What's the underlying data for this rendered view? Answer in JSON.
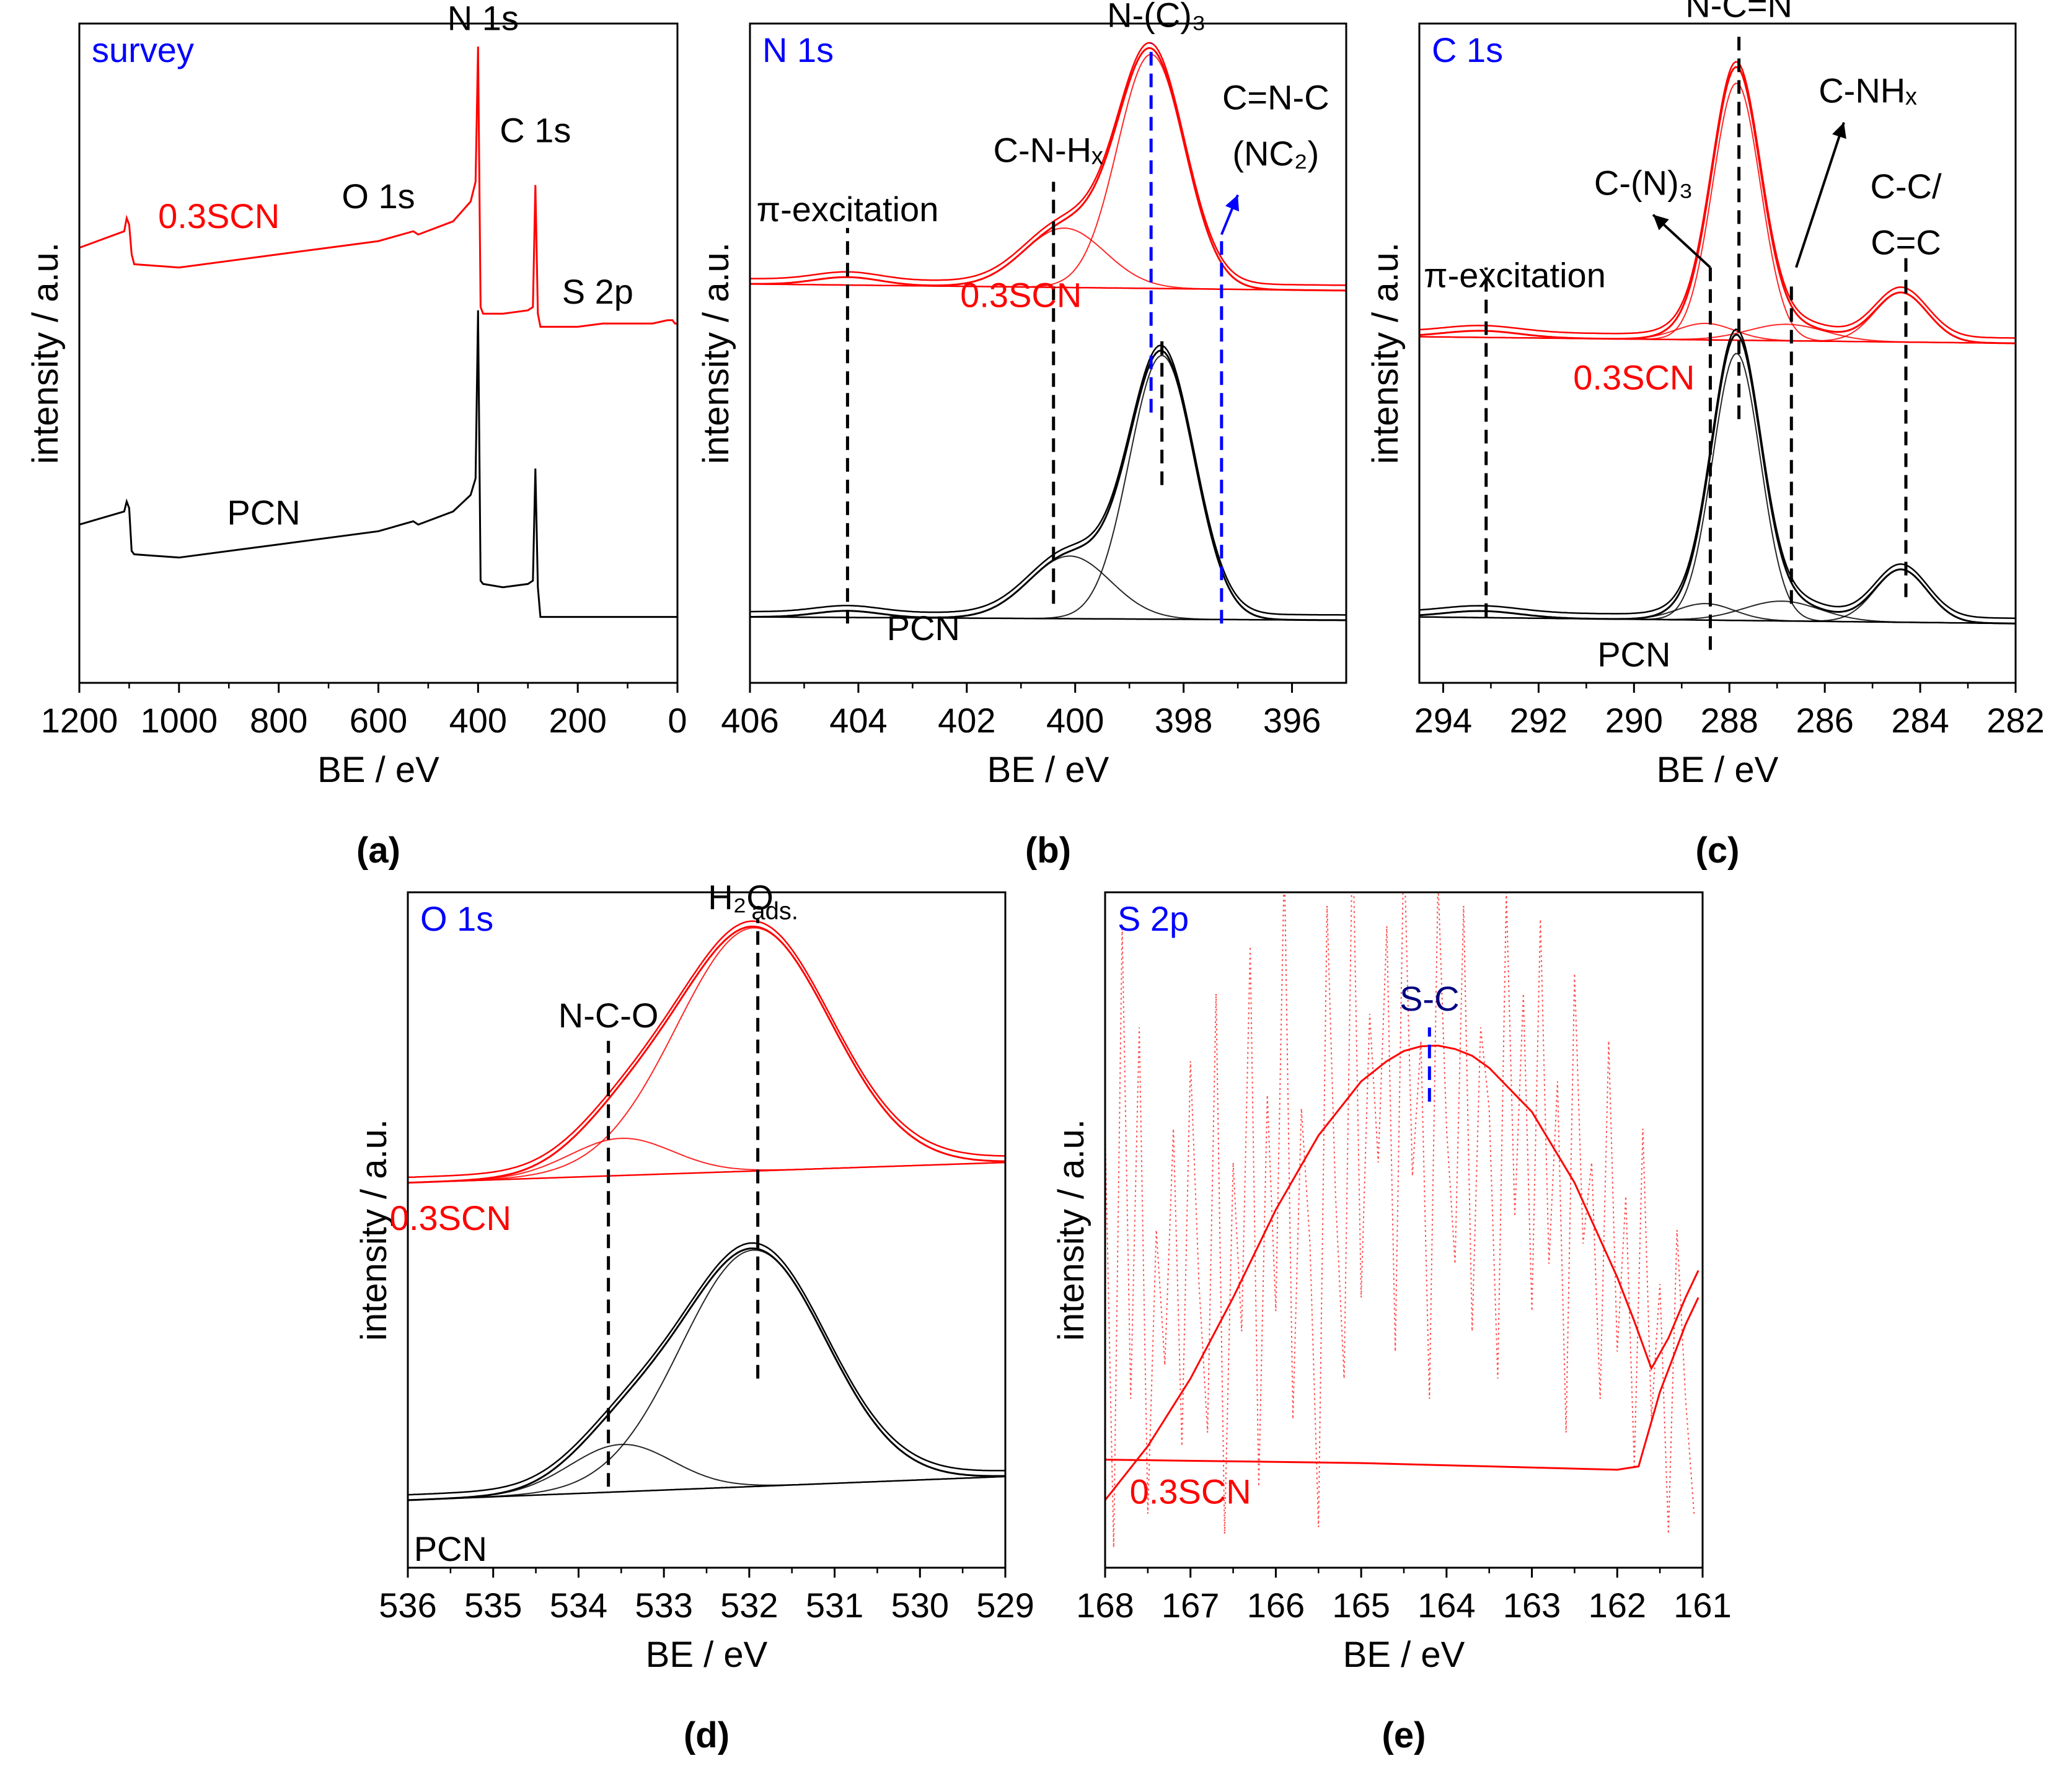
{
  "colors": {
    "red": "#ff0000",
    "black": "#000000",
    "blue": "#0000ff",
    "axis": "#000000"
  },
  "chart_data": [
    {
      "id": "a",
      "type": "line",
      "label": "(a)",
      "panel_title": "survey",
      "xlabel": "BE / eV",
      "ylabel": "intensity / a.u.",
      "xlim": [
        1200,
        0
      ],
      "ylim": [
        0,
        10
      ],
      "xticks": [
        "1200",
        "1000",
        "800",
        "600",
        "400",
        "200",
        "0"
      ],
      "xtick_values": [
        1200,
        1000,
        800,
        600,
        400,
        200,
        0
      ],
      "series": [
        {
          "name": "0.3SCN",
          "color": "red",
          "x": [
            1200,
            1110,
            1105,
            1100,
            1095,
            1090,
            1000,
            800,
            600,
            530,
            520,
            450,
            415,
            405,
            400,
            395,
            390,
            350,
            300,
            290,
            285,
            280,
            275,
            250,
            200,
            150,
            100,
            50,
            20,
            10,
            5,
            0
          ],
          "y": [
            6.6,
            6.85,
            7.05,
            6.95,
            6.5,
            6.35,
            6.3,
            6.5,
            6.7,
            6.85,
            6.8,
            7.0,
            7.3,
            7.6,
            9.65,
            5.7,
            5.6,
            5.6,
            5.65,
            5.7,
            7.55,
            5.6,
            5.4,
            5.4,
            5.4,
            5.45,
            5.45,
            5.45,
            5.5,
            5.5,
            5.45,
            5.45
          ]
        },
        {
          "name": "PCN",
          "color": "black",
          "x": [
            1200,
            1110,
            1105,
            1100,
            1095,
            1090,
            1000,
            800,
            600,
            530,
            520,
            450,
            415,
            405,
            400,
            395,
            390,
            350,
            300,
            290,
            285,
            280,
            275,
            250,
            200,
            150,
            100,
            50,
            20,
            10,
            5,
            0
          ],
          "y": [
            2.4,
            2.6,
            2.75,
            2.65,
            2.0,
            1.95,
            1.9,
            2.1,
            2.3,
            2.45,
            2.4,
            2.6,
            2.85,
            3.1,
            5.65,
            1.55,
            1.5,
            1.45,
            1.5,
            1.55,
            3.25,
            1.45,
            1.0,
            1.0,
            1.0,
            1.0,
            1.0,
            1.0,
            1.0,
            1.0,
            1.0,
            1.0
          ]
        }
      ],
      "annotations": [
        {
          "text": "N 1s",
          "x": 390,
          "y": 9.9,
          "color": "black"
        },
        {
          "text": "C 1s",
          "x": 285,
          "y": 8.2,
          "color": "black"
        },
        {
          "text": "O 1s",
          "x": 600,
          "y": 7.2,
          "color": "black"
        },
        {
          "text": "S 2p",
          "x": 160,
          "y": 5.75,
          "color": "black"
        },
        {
          "text": "0.3SCN",
          "x": 920,
          "y": 6.9,
          "color": "red"
        },
        {
          "text": "PCN",
          "x": 830,
          "y": 2.4,
          "color": "black"
        }
      ]
    },
    {
      "id": "b",
      "type": "line",
      "label": "(b)",
      "panel_title": "N 1s",
      "xlabel": "BE / eV",
      "ylabel": "intensity / a.u.",
      "xlim": [
        406,
        395
      ],
      "ylim": [
        0,
        10
      ],
      "xticks": [
        "406",
        "404",
        "402",
        "400",
        "398",
        "396"
      ],
      "xtick_values": [
        406,
        404,
        402,
        400,
        398,
        396
      ],
      "series": [
        {
          "name": "0.3SCN",
          "color": "red",
          "baseline": 6.05,
          "baseline_end": 5.95,
          "peaks": [
            {
              "center": 398.6,
              "height": 3.55,
              "sigma": 0.62
            },
            {
              "center": 400.2,
              "height": 0.9,
              "sigma": 0.75
            },
            {
              "center": 404.2,
              "height": 0.12,
              "sigma": 0.6
            }
          ]
        },
        {
          "name": "PCN",
          "color": "black",
          "baseline": 1.0,
          "baseline_end": 0.95,
          "peaks": [
            {
              "center": 398.4,
              "height": 4.0,
              "sigma": 0.6
            },
            {
              "center": 400.1,
              "height": 0.95,
              "sigma": 0.75
            },
            {
              "center": 404.2,
              "height": 0.1,
              "sigma": 0.6
            }
          ]
        }
      ],
      "markers": [
        {
          "x": 404.2,
          "y1": 0.9,
          "y2": 6.9,
          "color": "black"
        },
        {
          "x": 400.4,
          "y1": 1.2,
          "y2": 7.6,
          "color": "black"
        },
        {
          "x": 398.6,
          "y1": 4.1,
          "y2": 9.7,
          "color": "blue"
        },
        {
          "x": 398.4,
          "y1": 3.0,
          "y2": 5.3,
          "color": "black"
        },
        {
          "x": 397.3,
          "y1": 0.9,
          "y2": 6.8,
          "color": "blue"
        }
      ],
      "annotations": [
        {
          "text": "N-(C)₃",
          "x": 398.5,
          "y": 9.95,
          "color": "black"
        },
        {
          "text": "C=N-C",
          "x": 396.3,
          "y": 8.7,
          "color": "black"
        },
        {
          "text": "(NC₂)",
          "x": 396.3,
          "y": 7.85,
          "color": "black"
        },
        {
          "text": "C-N-Hₓ",
          "x": 400.5,
          "y": 7.9,
          "color": "black"
        },
        {
          "text": "π-excitation",
          "x": 404.2,
          "y": 7.0,
          "color": "black"
        },
        {
          "text": "0.3SCN",
          "x": 401.0,
          "y": 5.7,
          "color": "red"
        },
        {
          "text": "PCN",
          "x": 402.8,
          "y": 0.65,
          "color": "black"
        }
      ]
    },
    {
      "id": "c",
      "type": "line",
      "label": "(c)",
      "panel_title": "C 1s",
      "xlabel": "BE / eV",
      "ylabel": "intensity / a.u.",
      "xlim": [
        294.5,
        282
      ],
      "ylim": [
        0,
        10
      ],
      "xticks": [
        "294",
        "292",
        "290",
        "288",
        "286",
        "284",
        "282"
      ],
      "xtick_values": [
        294,
        292,
        290,
        288,
        286,
        284,
        282
      ],
      "series": [
        {
          "name": "0.3SCN",
          "color": "red",
          "baseline": 5.25,
          "baseline_end": 5.15,
          "peaks": [
            {
              "center": 287.85,
              "height": 3.9,
              "sigma": 0.5
            },
            {
              "center": 288.5,
              "height": 0.25,
              "sigma": 0.6
            },
            {
              "center": 286.8,
              "height": 0.25,
              "sigma": 0.8
            },
            {
              "center": 284.4,
              "height": 0.75,
              "sigma": 0.55
            },
            {
              "center": 293.2,
              "height": 0.1,
              "sigma": 0.8
            }
          ]
        },
        {
          "name": "PCN",
          "color": "black",
          "baseline": 1.0,
          "baseline_end": 0.9,
          "peaks": [
            {
              "center": 287.85,
              "height": 4.05,
              "sigma": 0.5
            },
            {
              "center": 288.5,
              "height": 0.25,
              "sigma": 0.6
            },
            {
              "center": 286.9,
              "height": 0.3,
              "sigma": 0.8
            },
            {
              "center": 284.4,
              "height": 0.8,
              "sigma": 0.55
            },
            {
              "center": 293.2,
              "height": 0.1,
              "sigma": 0.8
            }
          ]
        }
      ],
      "markers": [
        {
          "x": 293.1,
          "y1": 1.0,
          "y2": 6.3,
          "color": "black"
        },
        {
          "x": 288.4,
          "y1": 0.5,
          "y2": 6.3,
          "color": "black"
        },
        {
          "x": 287.8,
          "y1": 4.0,
          "y2": 9.9,
          "color": "black"
        },
        {
          "x": 286.7,
          "y1": 1.2,
          "y2": 6.1,
          "color": "black"
        },
        {
          "x": 284.3,
          "y1": 1.3,
          "y2": 6.5,
          "color": "black"
        }
      ],
      "annotations": [
        {
          "text": "N-C=N",
          "x": 287.8,
          "y": 10.1,
          "color": "black"
        },
        {
          "text": "C-NHₓ",
          "x": 285.1,
          "y": 8.8,
          "color": "black"
        },
        {
          "text": "C-(N)₃",
          "x": 289.8,
          "y": 7.4,
          "color": "black"
        },
        {
          "text": "C-C/",
          "x": 284.3,
          "y": 7.35,
          "color": "black"
        },
        {
          "text": "C=C",
          "x": 284.3,
          "y": 6.5,
          "color": "black"
        },
        {
          "text": "π-excitation",
          "x": 292.5,
          "y": 6.0,
          "color": "black"
        },
        {
          "text": "0.3SCN",
          "x": 290.0,
          "y": 4.45,
          "color": "red"
        },
        {
          "text": "PCN",
          "x": 290.0,
          "y": 0.25,
          "color": "black"
        }
      ]
    },
    {
      "id": "d",
      "type": "line",
      "label": "(d)",
      "panel_title": "O 1s",
      "xlabel": "BE / eV",
      "ylabel": "intensity / a.u.",
      "xlim": [
        536,
        529
      ],
      "ylim": [
        0,
        10
      ],
      "xticks": [
        "536",
        "535",
        "534",
        "533",
        "532",
        "531",
        "530",
        "529"
      ],
      "xtick_values": [
        536,
        535,
        534,
        533,
        532,
        531,
        530,
        529
      ],
      "series": [
        {
          "name": "0.3SCN",
          "color": "red",
          "baseline": 5.7,
          "baseline_end": 6.0,
          "peaks": [
            {
              "center": 531.95,
              "height": 3.6,
              "sigma": 0.9
            },
            {
              "center": 533.5,
              "height": 0.55,
              "sigma": 0.6
            }
          ]
        },
        {
          "name": "PCN",
          "color": "black",
          "baseline": 1.0,
          "baseline_end": 1.35,
          "peaks": [
            {
              "center": 531.95,
              "height": 3.5,
              "sigma": 0.85
            },
            {
              "center": 533.5,
              "height": 0.7,
              "sigma": 0.6
            }
          ]
        }
      ],
      "markers": [
        {
          "x": 533.65,
          "y1": 1.2,
          "y2": 7.8,
          "color": "black"
        },
        {
          "x": 531.9,
          "y1": 2.8,
          "y2": 9.6,
          "color": "black"
        }
      ],
      "annotations": [
        {
          "text": "H₂O",
          "x": 532.1,
          "y": 9.75,
          "color": "black"
        },
        {
          "text": "ads.",
          "x": 531.7,
          "y": 9.6,
          "color": "black"
        },
        {
          "text": "N-C-O",
          "x": 533.65,
          "y": 8.0,
          "color": "black"
        },
        {
          "text": "0.3SCN",
          "x": 535.5,
          "y": 5.0,
          "color": "red"
        },
        {
          "text": "PCN",
          "x": 535.5,
          "y": 0.1,
          "color": "black"
        }
      ]
    },
    {
      "id": "e",
      "type": "line",
      "label": "(e)",
      "panel_title": "S 2p",
      "xlabel": "BE / eV",
      "ylabel": "intensity / a.u.",
      "xlim": [
        168,
        161
      ],
      "ylim": [
        0,
        10
      ],
      "xticks": [
        "168",
        "167",
        "166",
        "165",
        "164",
        "163",
        "162",
        "161"
      ],
      "xtick_values": [
        168,
        167,
        166,
        165,
        164,
        163,
        162,
        161
      ],
      "series": [
        {
          "name": "0.3SCN envelope",
          "color": "red",
          "style": "solid",
          "x": [
            168,
            167.5,
            167,
            166.5,
            166,
            165.5,
            165,
            164.7,
            164.5,
            164.3,
            164.1,
            163.9,
            163.7,
            163.5,
            163,
            162.5,
            162,
            161.8,
            161.6,
            161.4,
            161.2,
            161.05
          ],
          "y": [
            1.0,
            1.8,
            2.8,
            4.0,
            5.3,
            6.4,
            7.2,
            7.5,
            7.65,
            7.72,
            7.73,
            7.68,
            7.58,
            7.4,
            6.75,
            5.7,
            4.3,
            3.65,
            2.95,
            3.4,
            4.0,
            4.4
          ]
        },
        {
          "name": "0.3SCN background",
          "color": "red",
          "style": "solid",
          "x": [
            168,
            165,
            162,
            161.75,
            161.5,
            161.2,
            161.05
          ],
          "y": [
            1.6,
            1.55,
            1.45,
            1.5,
            2.6,
            3.6,
            4.0
          ]
        },
        {
          "name": "0.3SCN raw",
          "color": "red",
          "style": "dotted",
          "x": [
            168,
            167.9,
            167.8,
            167.7,
            167.6,
            167.5,
            167.4,
            167.3,
            167.2,
            167.1,
            167.0,
            166.9,
            166.8,
            166.7,
            166.6,
            166.5,
            166.4,
            166.3,
            166.2,
            166.1,
            166.0,
            165.9,
            165.8,
            165.7,
            165.6,
            165.5,
            165.4,
            165.3,
            165.2,
            165.1,
            165.0,
            164.9,
            164.8,
            164.7,
            164.6,
            164.5,
            164.4,
            164.3,
            164.2,
            164.1,
            164.0,
            163.9,
            163.8,
            163.7,
            163.6,
            163.5,
            163.4,
            163.3,
            163.2,
            163.1,
            163.0,
            162.9,
            162.8,
            162.7,
            162.6,
            162.5,
            162.4,
            162.3,
            162.2,
            162.1,
            162.0,
            161.9,
            161.8,
            161.7,
            161.6,
            161.5,
            161.4,
            161.3,
            161.2,
            161.1
          ],
          "y": [
            6.5,
            0.3,
            9.5,
            2.5,
            8.0,
            0.8,
            5.0,
            3.0,
            6.5,
            1.8,
            7.5,
            4.2,
            2.0,
            8.5,
            0.5,
            6.0,
            3.5,
            9.2,
            1.2,
            7.0,
            3.8,
            10.5,
            2.2,
            6.8,
            4.8,
            0.6,
            9.8,
            5.5,
            2.8,
            11.0,
            4.0,
            8.2,
            6.0,
            9.5,
            3.2,
            10.8,
            5.8,
            7.8,
            2.5,
            10.2,
            6.5,
            4.5,
            9.8,
            3.5,
            8.0,
            6.8,
            2.8,
            10.0,
            5.2,
            8.5,
            3.8,
            9.6,
            4.5,
            7.2,
            2.0,
            8.8,
            4.8,
            6.0,
            2.5,
            7.8,
            3.2,
            5.5,
            1.5,
            6.5,
            2.2,
            4.2,
            0.5,
            5.0,
            2.5,
            0.8
          ]
        }
      ],
      "markers": [
        {
          "x": 164.2,
          "y1": 6.9,
          "y2": 8.0,
          "color": "blue"
        }
      ],
      "annotations": [
        {
          "text": "S-C",
          "x": 164.2,
          "y": 8.25,
          "color": "navy"
        },
        {
          "text": "0.3SCN",
          "x": 167.0,
          "y": 0.95,
          "color": "red"
        }
      ]
    }
  ]
}
